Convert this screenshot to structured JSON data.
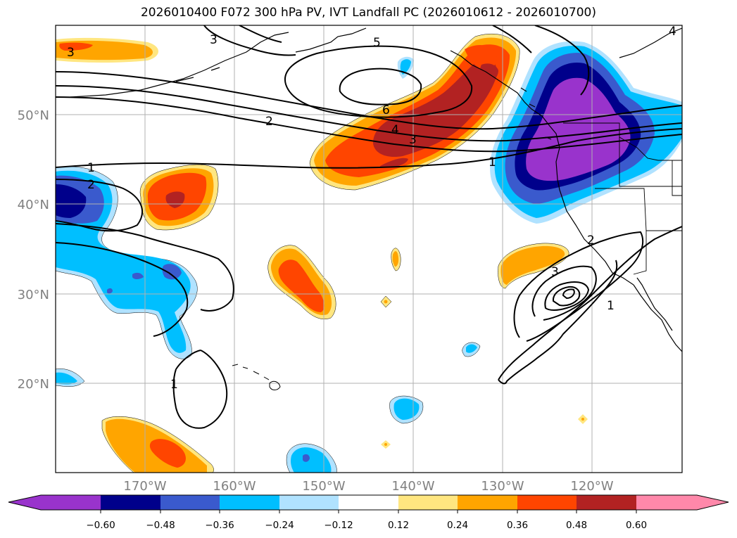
{
  "title": "2026010400 F072 300 hPa PV, IVT Landfall PC (2026010612 - 2026010700)",
  "map": {
    "lat_labels": [
      "50°N",
      "40°N",
      "30°N",
      "20°N"
    ],
    "lon_labels": [
      "170°W",
      "160°W",
      "150°W",
      "140°W",
      "130°W",
      "120°W"
    ],
    "label_color": "#808080"
  },
  "pv_contour_labels": [
    "1",
    "2",
    "3",
    "4",
    "5",
    "6",
    "1",
    "2",
    "3",
    "1",
    "2",
    "3",
    "1",
    "3",
    "4"
  ],
  "colorbar": {
    "ticks": [
      "−0.60",
      "−0.48",
      "−0.36",
      "−0.24",
      "−0.12",
      "0.12",
      "0.24",
      "0.36",
      "0.48",
      "0.60"
    ],
    "colors": [
      "#9933cc",
      "#00008b",
      "#3a5acd",
      "#00bfff",
      "#b0e2ff",
      "#ffffff",
      "#ffe680",
      "#ffa500",
      "#ff4500",
      "#b22222",
      "#ff88aa"
    ]
  }
}
